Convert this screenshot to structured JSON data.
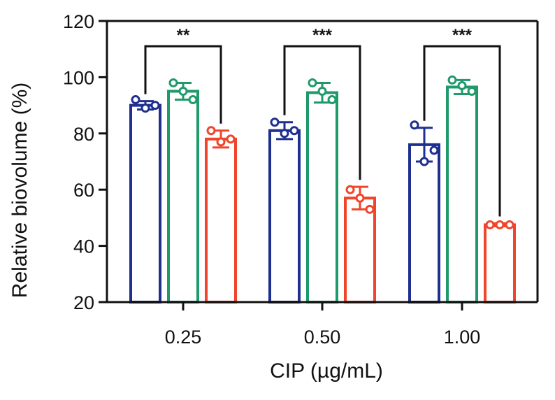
{
  "chart_data": {
    "type": "bar",
    "title": "",
    "xlabel": "CIP (µg/mL)",
    "ylabel": "Relative biovolume (%)",
    "ylim": [
      20,
      120
    ],
    "yticks": [
      "20",
      "40",
      "60",
      "80",
      "100",
      "120"
    ],
    "categories": [
      "0.25",
      "0.50",
      "1.00"
    ],
    "grid": false,
    "legend": "none",
    "series": [
      {
        "color": "#1f2f8f",
        "values": [
          90,
          81,
          76
        ],
        "errors": [
          1.5,
          3,
          6
        ],
        "points": [
          [
            92,
            89,
            90
          ],
          [
            84,
            80,
            81
          ],
          [
            83,
            70,
            74
          ]
        ]
      },
      {
        "color": "#1f9a6a",
        "values": [
          95,
          94.5,
          96.5
        ],
        "errors": [
          3,
          3.5,
          2.5
        ],
        "points": [
          [
            98,
            95,
            92
          ],
          [
            98,
            95,
            92
          ],
          [
            99,
            97,
            95
          ]
        ]
      },
      {
        "color": "#f0452a",
        "values": [
          78,
          57,
          47.5
        ],
        "errors": [
          3,
          4,
          0.5
        ],
        "points": [
          [
            81,
            77,
            78
          ],
          [
            60,
            57,
            53
          ],
          [
            47.5,
            47.5,
            47.5
          ]
        ]
      }
    ],
    "significance": [
      {
        "category": "0.25",
        "from_series": 0,
        "to_series": 2,
        "label": "**",
        "y": 111
      },
      {
        "category": "0.50",
        "from_series": 0,
        "to_series": 2,
        "label": "***",
        "y": 111
      },
      {
        "category": "1.00",
        "from_series": 0,
        "to_series": 2,
        "label": "***",
        "y": 111
      }
    ]
  }
}
